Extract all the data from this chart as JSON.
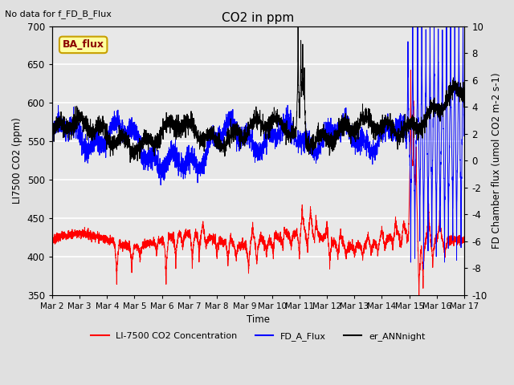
{
  "title": "CO2 in ppm",
  "top_left_note": "No data for f_FD_B_Flux",
  "ylabel_left": "LI7500 CO2 (ppm)",
  "ylabel_right": "FD Chamber flux (umol CO2 m-2 s-1)",
  "xlabel": "Time",
  "ylim_left": [
    350,
    700
  ],
  "ylim_right": [
    -10,
    10
  ],
  "xlim": [
    0,
    15
  ],
  "xtick_labels": [
    "Mar 2",
    "Mar 3",
    "Mar 4",
    "Mar 5",
    "Mar 6",
    "Mar 7",
    "Mar 8",
    "Mar 9",
    "Mar 10",
    "Mar 11",
    "Mar 12",
    "Mar 13",
    "Mar 14",
    "Mar 15",
    "Mar 16",
    "Mar 17"
  ],
  "xtick_positions": [
    0,
    1,
    2,
    3,
    4,
    5,
    6,
    7,
    8,
    9,
    10,
    11,
    12,
    13,
    14,
    15
  ],
  "ytick_left": [
    350,
    400,
    450,
    500,
    550,
    600,
    650,
    700
  ],
  "ytick_right": [
    -10,
    -8,
    -6,
    -4,
    -2,
    0,
    2,
    4,
    6,
    8,
    10
  ],
  "background_color": "#e0e0e0",
  "plot_bg_color": "#e8e8e8",
  "grid_color": "white",
  "legend_entries": [
    "LI-7500 CO2 Concentration",
    "FD_A_Flux",
    "er_ANNnight"
  ],
  "ba_flux_label": "BA_flux",
  "ba_flux_bg": "#ffffa0",
  "ba_flux_border": "#c8a000"
}
